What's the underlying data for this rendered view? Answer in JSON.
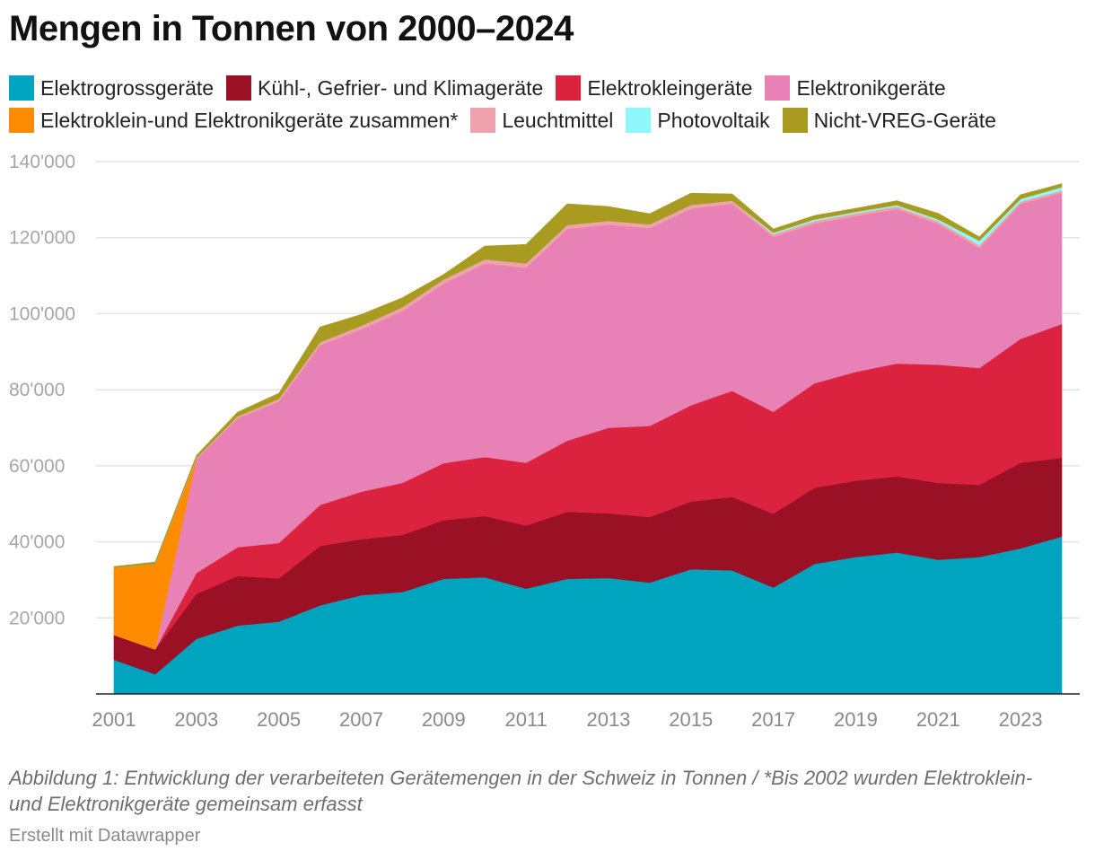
{
  "chart_data": {
    "type": "area",
    "stacked": true,
    "title": "Mengen in Tonnen von 2000–2024",
    "xlabel": "",
    "ylabel": "",
    "ylim": [
      0,
      140000
    ],
    "y_ticks": [
      20000,
      40000,
      60000,
      80000,
      100000,
      120000,
      140000
    ],
    "y_tick_labels": [
      "20'000",
      "40'000",
      "60'000",
      "80'000",
      "100'000",
      "120'000",
      "140'000"
    ],
    "x_tick_labels": [
      "2001",
      "2003",
      "2005",
      "2007",
      "2009",
      "2011",
      "2013",
      "2015",
      "2017",
      "2019",
      "2021",
      "2023"
    ],
    "x": [
      2001,
      2002,
      2003,
      2004,
      2005,
      2006,
      2007,
      2008,
      2009,
      2010,
      2011,
      2012,
      2013,
      2014,
      2015,
      2016,
      2017,
      2018,
      2019,
      2020,
      2021,
      2022,
      2023,
      2024
    ],
    "grid": true,
    "series": [
      {
        "name": "Elektrogrossgeräte",
        "color": "#00a4be",
        "values": [
          9000,
          5200,
          14500,
          18000,
          19000,
          23300,
          26000,
          26800,
          30300,
          30700,
          27700,
          30300,
          30500,
          29300,
          32800,
          32500,
          28000,
          34200,
          36000,
          37200,
          35300,
          36000,
          38300,
          41400
        ]
      },
      {
        "name": "Kühl-, Gefrier- und Klimageräte",
        "color": "#9a1024",
        "values": [
          6500,
          6500,
          11800,
          13000,
          11400,
          15600,
          14700,
          15000,
          15400,
          16100,
          16600,
          17600,
          17000,
          17200,
          17800,
          19300,
          19400,
          20000,
          20100,
          20000,
          20200,
          19000,
          22500,
          20700
        ]
      },
      {
        "name": "Elektrokleingeräte",
        "color": "#db2340",
        "values": [
          0,
          0,
          5500,
          7600,
          9300,
          10800,
          12500,
          13700,
          15000,
          15500,
          16500,
          18700,
          22500,
          24000,
          25300,
          27900,
          26800,
          27500,
          28600,
          29700,
          31100,
          30700,
          32600,
          35200
        ]
      },
      {
        "name": "Elektronikgeräte",
        "color": "#e882b6",
        "values": [
          0,
          0,
          30000,
          33900,
          37200,
          42000,
          42700,
          45200,
          47200,
          50900,
          51300,
          55700,
          53400,
          52000,
          51700,
          49200,
          46000,
          42000,
          41000,
          40600,
          37000,
          31600,
          35500,
          34500
        ]
      },
      {
        "name": "Elektroklein-und Elektronikgeräte zusammen*",
        "color": "#ff8c00",
        "values": [
          17700,
          22500,
          0,
          0,
          0,
          0,
          0,
          0,
          0,
          0,
          0,
          0,
          0,
          0,
          0,
          0,
          0,
          0,
          0,
          0,
          0,
          0,
          0,
          0
        ]
      },
      {
        "name": "Leuchtmittel",
        "color": "#f0a1ae",
        "values": [
          0,
          0,
          300,
          500,
          700,
          800,
          900,
          1000,
          1100,
          1100,
          1100,
          1000,
          1000,
          1000,
          1000,
          800,
          700,
          700,
          700,
          700,
          700,
          700,
          600,
          600
        ]
      },
      {
        "name": "Photovoltaik",
        "color": "#8ef8fb",
        "values": [
          0,
          0,
          0,
          0,
          0,
          0,
          0,
          0,
          0,
          0,
          0,
          0,
          0,
          0,
          0,
          0,
          400,
          400,
          400,
          400,
          500,
          1200,
          700,
          900
        ]
      },
      {
        "name": "Nicht-VREG-Geräte",
        "color": "#a89b20",
        "values": [
          300,
          500,
          600,
          1100,
          1500,
          4000,
          3000,
          2500,
          1300,
          3500,
          5000,
          5600,
          3800,
          2800,
          3100,
          1800,
          1000,
          1000,
          900,
          1100,
          1600,
          1000,
          1100,
          900
        ]
      }
    ],
    "caption": "Abbildung 1: Entwicklung der verarbeiteten Gerätemengen in der Schweiz in Tonnen / *Bis 2002 wurden Elektroklein- und Elektronikgeräte gemeinsam erfasst",
    "credit": "Erstellt mit Datawrapper"
  }
}
